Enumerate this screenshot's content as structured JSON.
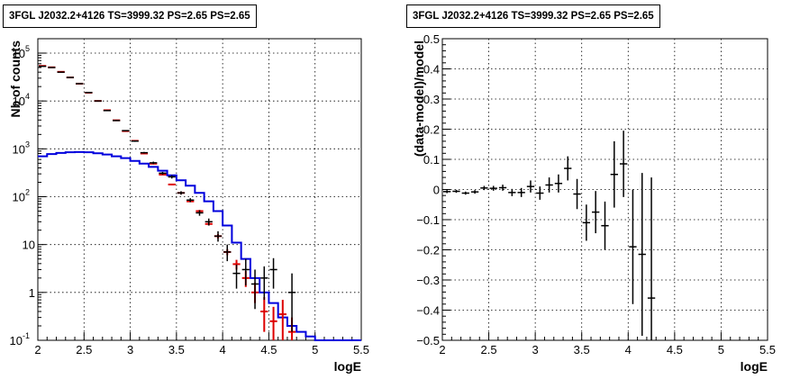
{
  "panels": [
    {
      "title": "3FGL J2032.2+4126 TS=3999.32 PS=2.65 PS=2.65"
    },
    {
      "title": "3FGL J2032.2+4126 TS=3999.32 PS=2.65 PS=2.65"
    }
  ],
  "chart_data": [
    {
      "type": "line",
      "title": "3FGL J2032.2+4126 TS=3999.32 PS=2.65 PS=2.65",
      "xlabel": "logE",
      "ylabel": "Nb of counts",
      "xlim": [
        2,
        5.5
      ],
      "ylim": [
        0.1,
        200000
      ],
      "yscale": "log",
      "grid": true,
      "colors": {
        "data": "#000000",
        "total_model": "#dd0000",
        "source_model": "#0000dd"
      },
      "x_ticks": [
        "2",
        "2.5",
        "3",
        "3.5",
        "4",
        "4.5",
        "5",
        "5.5"
      ],
      "y_ticks": [
        {
          "value": 0.1,
          "label": "10",
          "sup": "-1"
        },
        {
          "value": 1,
          "label": "1",
          "sup": ""
        },
        {
          "value": 10,
          "label": "10",
          "sup": ""
        },
        {
          "value": 100,
          "label": "10",
          "sup": "2"
        },
        {
          "value": 1000,
          "label": "10",
          "sup": "3"
        },
        {
          "value": 10000,
          "label": "10",
          "sup": "4"
        },
        {
          "value": 100000,
          "label": "10",
          "sup": "5"
        }
      ],
      "bin_edges": [
        2.0,
        2.1,
        2.2,
        2.3,
        2.4,
        2.5,
        2.6,
        2.7,
        2.8,
        2.9,
        3.0,
        3.1,
        3.2,
        3.3,
        3.4,
        3.5,
        3.6,
        3.7,
        3.8,
        3.9,
        4.0,
        4.1,
        4.2,
        4.3,
        4.4,
        4.5,
        4.6,
        4.7,
        4.8,
        4.9,
        5.0,
        5.5
      ],
      "data": {
        "x": [
          2.05,
          2.15,
          2.25,
          2.35,
          2.45,
          2.55,
          2.65,
          2.75,
          2.85,
          2.95,
          3.05,
          3.15,
          3.25,
          3.35,
          3.45,
          3.55,
          3.65,
          3.75,
          3.85,
          3.95,
          4.05,
          4.15,
          4.25,
          4.35,
          4.45,
          4.55,
          4.75
        ],
        "y": [
          53000,
          50000,
          40000,
          31000,
          23000,
          15000,
          10000,
          6300,
          3900,
          2400,
          1450,
          830,
          510,
          310,
          260,
          120,
          85,
          46,
          30,
          15,
          7,
          2.5,
          3,
          1.5,
          2,
          3,
          1
        ],
        "y_low": [
          52500,
          49500,
          39600,
          30600,
          22700,
          14800,
          9800,
          6200,
          3800,
          2350,
          1400,
          800,
          480,
          290,
          240,
          110,
          77,
          40,
          25,
          11.5,
          4.5,
          1.2,
          1.4,
          0.45,
          0.7,
          1.2,
          0.15
        ],
        "y_high": [
          53500,
          50500,
          40400,
          31400,
          23300,
          15200,
          10200,
          6400,
          4000,
          2450,
          1500,
          860,
          540,
          330,
          280,
          130,
          93,
          52,
          35,
          19,
          10,
          3.8,
          5,
          3,
          3.5,
          5.2,
          2.5
        ]
      },
      "total_model": {
        "x": [
          2.05,
          2.15,
          2.25,
          2.35,
          2.45,
          2.55,
          2.65,
          2.75,
          2.85,
          2.95,
          3.05,
          3.15,
          3.25,
          3.35,
          3.45,
          3.55,
          3.65,
          3.75,
          3.85,
          3.95,
          4.05,
          4.15,
          4.25,
          4.35,
          4.45,
          4.55,
          4.65,
          4.75
        ],
        "y": [
          54000,
          50500,
          40600,
          31000,
          23000,
          14900,
          10000,
          6400,
          3950,
          2350,
          1470,
          800,
          490,
          290,
          180,
          120,
          80,
          50,
          27,
          15,
          7,
          3.9,
          2,
          1,
          0.4,
          0.25,
          0.35,
          0.15
        ],
        "y_low": [
          53600,
          50100,
          40300,
          30700,
          22800,
          14700,
          9900,
          6300,
          3900,
          2300,
          1440,
          785,
          478,
          282,
          174,
          115,
          77,
          47,
          25,
          13.5,
          6,
          3,
          1.3,
          0.6,
          0.15,
          0.1,
          0.1,
          0.1
        ],
        "y_high": [
          54400,
          50900,
          40900,
          31300,
          23200,
          15100,
          10100,
          6500,
          4000,
          2400,
          1500,
          815,
          502,
          298,
          186,
          125,
          83,
          53,
          29,
          16.5,
          8,
          4.8,
          2.8,
          1.6,
          0.8,
          0.5,
          0.7,
          0.3
        ]
      },
      "source_model": {
        "y": [
          700,
          780,
          820,
          850,
          860,
          850,
          810,
          760,
          700,
          640,
          560,
          490,
          420,
          350,
          280,
          220,
          170,
          120,
          80,
          50,
          25,
          11,
          5,
          2,
          1,
          0.6,
          0.3,
          0.2,
          0.15,
          0.12,
          0.1
        ]
      }
    },
    {
      "type": "scatter",
      "title": "3FGL J2032.2+4126 TS=3999.32 PS=2.65 PS=2.65",
      "xlabel": "logE",
      "ylabel": "(data-model)/model",
      "xlim": [
        2,
        5.5
      ],
      "ylim": [
        -0.5,
        0.5
      ],
      "grid": true,
      "x_ticks": [
        "2",
        "2.5",
        "3",
        "3.5",
        "4",
        "4.5",
        "5",
        "5.5"
      ],
      "y_ticks": [
        {
          "value": -0.5,
          "label": "−0.5"
        },
        {
          "value": -0.4,
          "label": "−0.4"
        },
        {
          "value": -0.3,
          "label": "−0.3"
        },
        {
          "value": -0.2,
          "label": "−0.2"
        },
        {
          "value": -0.1,
          "label": "−0.1"
        },
        {
          "value": 0,
          "label": "0"
        },
        {
          "value": 0.1,
          "label": "0.1"
        },
        {
          "value": 0.2,
          "label": "0.2"
        },
        {
          "value": 0.3,
          "label": "0.3"
        },
        {
          "value": 0.4,
          "label": "0.4"
        },
        {
          "value": 0.5,
          "label": "0.5"
        }
      ],
      "data": {
        "x": [
          2.05,
          2.15,
          2.25,
          2.35,
          2.45,
          2.55,
          2.65,
          2.75,
          2.85,
          2.95,
          3.05,
          3.15,
          3.25,
          3.35,
          3.45,
          3.55,
          3.65,
          3.75,
          3.85,
          3.95,
          4.05,
          4.15,
          4.25
        ],
        "y": [
          -0.007,
          -0.006,
          -0.012,
          -0.008,
          0.005,
          0.004,
          0.006,
          -0.01,
          -0.01,
          0.01,
          -0.012,
          0.015,
          0.02,
          0.07,
          -0.015,
          -0.11,
          -0.075,
          -0.12,
          0.05,
          0.085,
          -0.19,
          -0.215,
          -0.36
        ],
        "yerr": [
          0.005,
          0.005,
          0.005,
          0.006,
          0.007,
          0.008,
          0.01,
          0.012,
          0.015,
          0.02,
          0.022,
          0.025,
          0.03,
          0.04,
          0.05,
          0.06,
          0.07,
          0.08,
          0.11,
          0.11,
          0.19,
          0.27,
          0.4
        ]
      }
    }
  ]
}
